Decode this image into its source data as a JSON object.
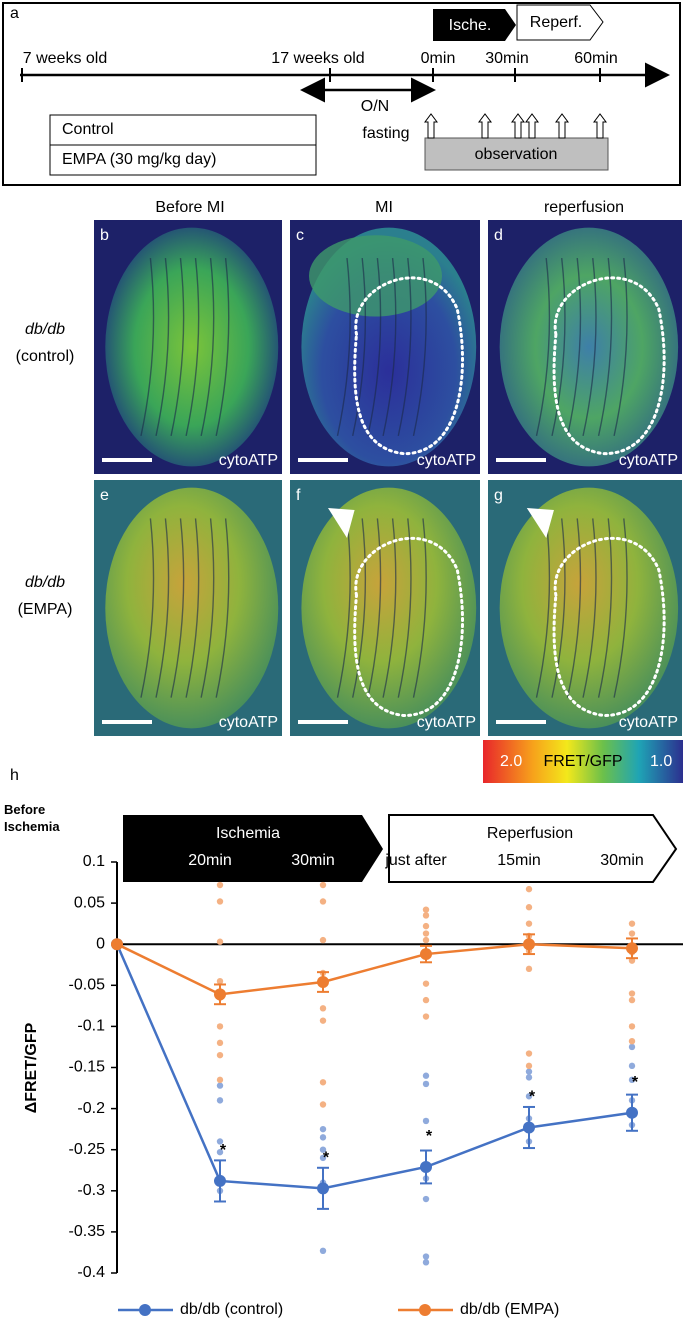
{
  "panel_a": {
    "label": "a",
    "timeline_labels": [
      "7 weeks old",
      "17 weeks old",
      "0min",
      "30min",
      "60min"
    ],
    "ischemia": "Ische.",
    "reperfusion": "Reperf.",
    "fasting": [
      "O/N",
      "fasting"
    ],
    "groups": [
      "Control",
      "EMPA (30 mg/kg day)"
    ],
    "observation": "observation"
  },
  "images": {
    "column_headers": [
      "Before MI",
      "MI",
      "reperfusion"
    ],
    "row_labels": [
      {
        "strain": "db/db",
        "group": "(control)"
      },
      {
        "strain": "db/db",
        "group": "(EMPA)"
      }
    ],
    "panels": [
      {
        "letter": "b",
        "caption": "cytoATP"
      },
      {
        "letter": "c",
        "caption": "cytoATP"
      },
      {
        "letter": "d",
        "caption": "cytoATP"
      },
      {
        "letter": "e",
        "caption": "cytoATP"
      },
      {
        "letter": "f",
        "caption": "cytoATP"
      },
      {
        "letter": "g",
        "caption": "cytoATP"
      }
    ],
    "colorbar": {
      "max_label": "2.0",
      "title": "FRET/GFP",
      "min_label": "1.0"
    }
  },
  "chart_data": {
    "type": "line",
    "panel_label": "h",
    "y_label": "ΔFRET/GFP",
    "categories": [
      "Before Ischemia",
      "20min",
      "30min",
      "just after",
      "15min",
      "30min"
    ],
    "phases": [
      "Ischemia",
      "Reperfusion"
    ],
    "ylim": [
      -0.4,
      0.1
    ],
    "yticks": [
      0.1,
      0.05,
      0,
      -0.05,
      -0.1,
      -0.15,
      -0.2,
      -0.25,
      -0.3,
      -0.35,
      -0.4
    ],
    "series": [
      {
        "name": "db/db (control)",
        "color": "#4472c4",
        "point_color": "#8faadc",
        "values": [
          0,
          -0.288,
          -0.297,
          -0.271,
          -0.223,
          -0.205
        ],
        "errors": [
          0,
          0.025,
          0.025,
          0.02,
          0.025,
          0.022
        ],
        "points": [
          [],
          [
            -0.19,
            -0.172,
            -0.24,
            -0.253,
            -0.285,
            -0.3
          ],
          [
            -0.225,
            -0.235,
            -0.25,
            -0.26,
            -0.29,
            -0.373
          ],
          [
            -0.16,
            -0.17,
            -0.215,
            -0.285,
            -0.31,
            -0.38,
            -0.387
          ],
          [
            -0.155,
            -0.162,
            -0.185,
            -0.212,
            -0.24
          ],
          [
            -0.125,
            -0.148,
            -0.165,
            -0.19,
            -0.22
          ]
        ]
      },
      {
        "name": "db/db (EMPA)",
        "color": "#ed7d31",
        "point_color": "#f4b183",
        "values": [
          0,
          -0.061,
          -0.046,
          -0.012,
          0,
          -0.005
        ],
        "errors": [
          0,
          0.012,
          0.012,
          0.01,
          0.012,
          0.012
        ],
        "points": [
          [],
          [
            0.072,
            0.052,
            0.003,
            -0.045,
            -0.065,
            -0.1,
            -0.12,
            -0.135,
            -0.165
          ],
          [
            0.072,
            0.052,
            0.005,
            -0.035,
            -0.078,
            -0.093,
            -0.168,
            -0.195
          ],
          [
            0.042,
            0.035,
            0.022,
            0.013,
            0.005,
            -0.01,
            -0.048,
            -0.068,
            -0.088
          ],
          [
            0.067,
            0.045,
            0.025,
            0.01,
            -0.008,
            -0.03,
            -0.133,
            -0.148
          ],
          [
            0.025,
            0.013,
            -0.01,
            -0.02,
            -0.06,
            -0.068,
            -0.1,
            -0.118
          ]
        ]
      }
    ],
    "significance_marker": "*",
    "significant_points": [
      1,
      2,
      3,
      4,
      5
    ]
  }
}
